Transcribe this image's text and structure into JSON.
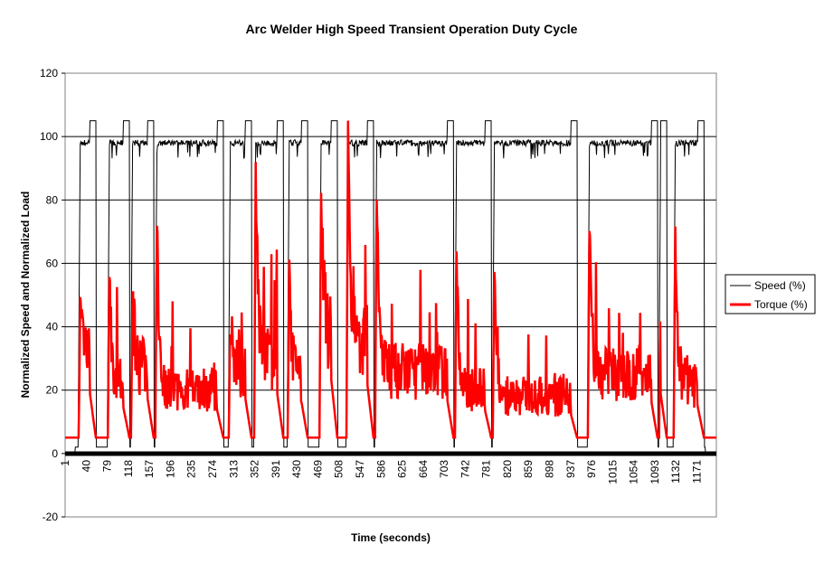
{
  "chart_data": {
    "type": "line",
    "title": "Arc Welder High Speed Transient Operation Duty Cycle",
    "xlabel": "Time (seconds)",
    "ylabel": "Normalized Speed and Normalized Load",
    "xlim": [
      1,
      1207
    ],
    "ylim": [
      -20,
      120
    ],
    "y_ticks": [
      -20,
      0,
      20,
      40,
      60,
      80,
      100,
      120
    ],
    "x_ticks": [
      1,
      40,
      79,
      118,
      157,
      196,
      235,
      274,
      313,
      352,
      391,
      430,
      469,
      508,
      547,
      586,
      625,
      664,
      703,
      742,
      781,
      820,
      859,
      898,
      937,
      976,
      1015,
      1054,
      1093,
      1132,
      1171
    ],
    "grid": true,
    "legend": {
      "placement": "right",
      "entries": [
        "Speed (%)",
        "Torque (%)"
      ]
    },
    "series": [
      {
        "name": "Speed (%)",
        "color": "#000000",
        "idle_value": 2,
        "operating_value": 98,
        "pre_shutdown_value": 105
      },
      {
        "name": "Torque (%)",
        "color": "#ff0000",
        "idle_value": 5
      }
    ],
    "operating_segments_seconds": [
      {
        "start": 26,
        "end": 58,
        "torque_peak": 44,
        "torque_level": 30
      },
      {
        "start": 80,
        "end": 120,
        "torque_peak": 61,
        "torque_level": 22
      },
      {
        "start": 123,
        "end": 165,
        "torque_peak": 48,
        "torque_level": 27
      },
      {
        "start": 168,
        "end": 294,
        "torque_peak": 77,
        "torque_level": 20
      },
      {
        "start": 304,
        "end": 346,
        "torque_peak": 46,
        "torque_level": 27
      },
      {
        "start": 351,
        "end": 405,
        "torque_peak": 90,
        "torque_level": 30
      },
      {
        "start": 413,
        "end": 450,
        "torque_peak": 58,
        "torque_level": 25
      },
      {
        "start": 472,
        "end": 505,
        "torque_peak": 84,
        "torque_level": 38
      },
      {
        "start": 522,
        "end": 572,
        "torque_peak": 100,
        "torque_level": 35
      },
      {
        "start": 575,
        "end": 720,
        "torque_peak": 89,
        "torque_level": 26
      },
      {
        "start": 723,
        "end": 790,
        "torque_peak": 63,
        "torque_level": 20
      },
      {
        "start": 793,
        "end": 949,
        "torque_peak": 63,
        "torque_level": 18
      },
      {
        "start": 969,
        "end": 1098,
        "torque_peak": 77,
        "torque_level": 25
      },
      {
        "start": 1101,
        "end": 1115,
        "torque_peak": 60,
        "torque_level": 30
      },
      {
        "start": 1128,
        "end": 1184,
        "torque_peak": 72,
        "torque_level": 22
      }
    ]
  }
}
